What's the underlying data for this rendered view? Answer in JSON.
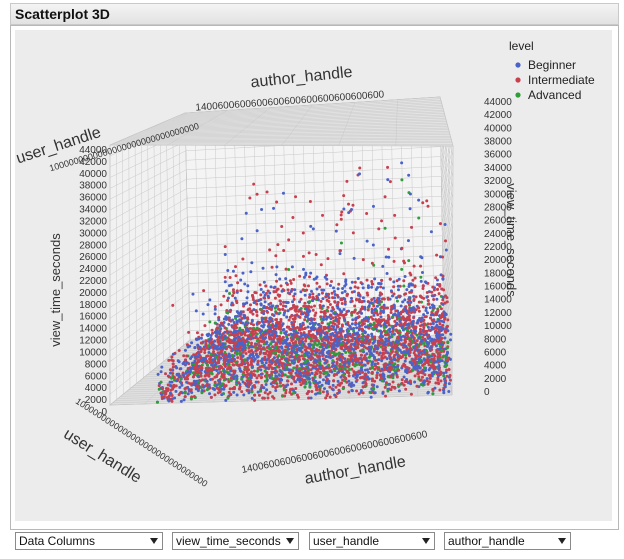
{
  "window": {
    "title": "Scatterplot 3D"
  },
  "chart_data": {
    "type": "scatter",
    "title": "",
    "axes": {
      "vertical": {
        "label": "view_time_seconds",
        "range": [
          0,
          44000
        ],
        "ticks": [
          0,
          2000,
          4000,
          6000,
          8000,
          10000,
          12000,
          14000,
          16000,
          18000,
          20000,
          22000,
          24000,
          26000,
          28000,
          30000,
          32000,
          34000,
          36000,
          38000,
          40000,
          42000,
          44000
        ]
      },
      "horizontal_front": {
        "label": "author_handle",
        "tick_text": "1400600600600600600600600600600600"
      },
      "depth": {
        "label": "user_handle",
        "tick_text": "1000000000000000000000000000000"
      },
      "top_back": {
        "label": "author_handle",
        "tick_text": "1400600600600600600600600600600600"
      }
    },
    "legend": {
      "title": "level",
      "placement": "top-right",
      "entries": [
        {
          "name": "Beginner",
          "color": "#4a63c8"
        },
        {
          "name": "Intermediate",
          "color": "#c8404e"
        },
        {
          "name": "Advanced",
          "color": "#2f9e3a"
        }
      ]
    },
    "grid": true,
    "series": [
      {
        "name": "Beginner",
        "approx_points": 2000,
        "typical_view_time_seconds": [
          0,
          12000
        ],
        "max_view_time_seconds": 36000
      },
      {
        "name": "Intermediate",
        "approx_points": 2200,
        "typical_view_time_seconds": [
          0,
          12000
        ],
        "max_view_time_seconds": 39000
      },
      {
        "name": "Advanced",
        "approx_points": 500,
        "typical_view_time_seconds": [
          0,
          8000
        ],
        "max_view_time_seconds": 33000
      }
    ]
  },
  "controls": {
    "select_1": "Data Columns",
    "select_2": "view_time_seconds",
    "select_3": "user_handle",
    "select_4": "author_handle"
  }
}
